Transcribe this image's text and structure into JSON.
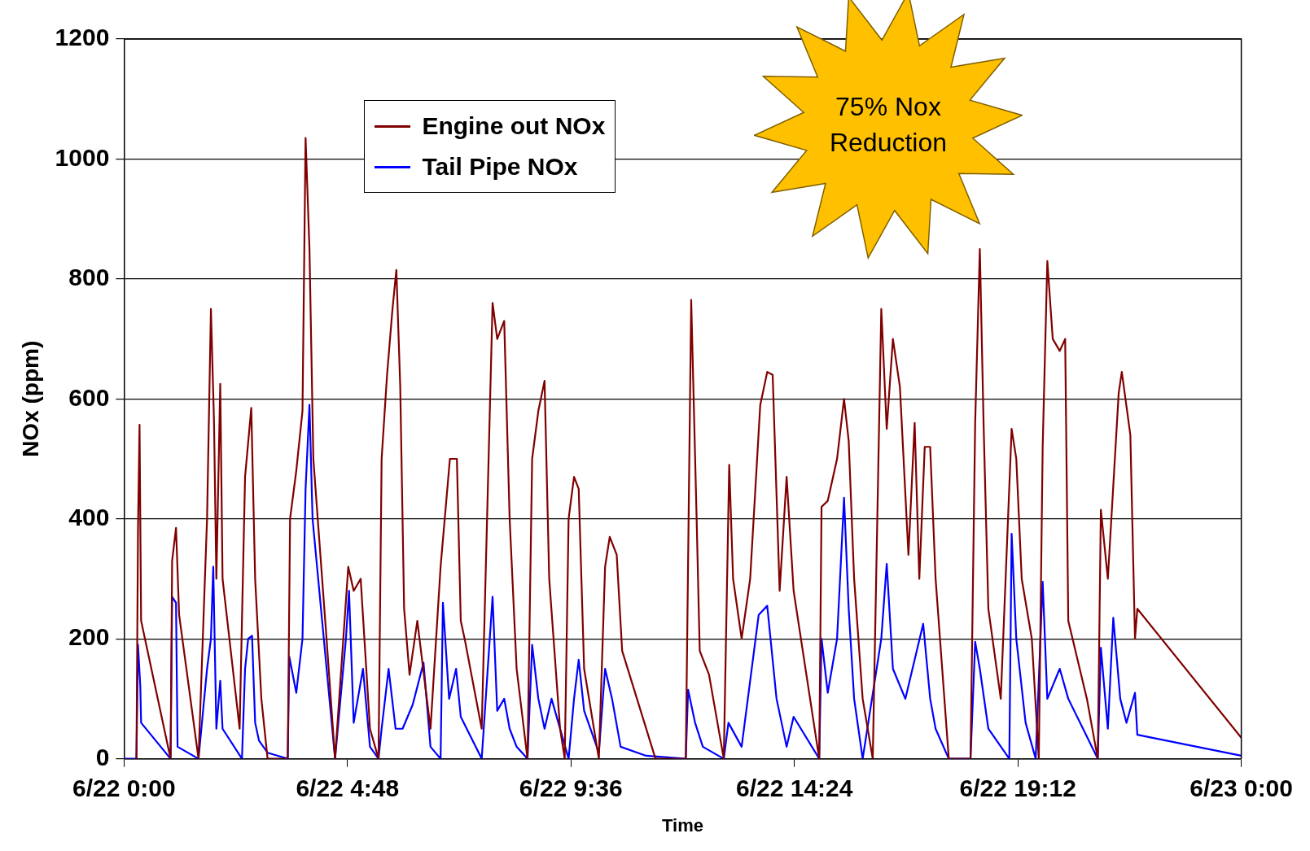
{
  "chart_data": {
    "type": "line",
    "xlabel": "Time",
    "ylabel": "NOx (ppm)",
    "annotations": [
      "75% Nox Reduction"
    ],
    "xlim": [
      "--06-22T00:00",
      "--06-23T00:00"
    ],
    "xticks": [
      {
        "value": "--06-22T00:00",
        "label": "6/22 0:00"
      },
      {
        "value": "--06-22T04:48",
        "label": "6/22 4:48"
      },
      {
        "value": "--06-22T09:36",
        "label": "6/22 9:36"
      },
      {
        "value": "--06-22T14:24",
        "label": "6/22 14:24"
      },
      {
        "value": "--06-22T19:12",
        "label": "6/22 19:12"
      },
      {
        "value": "--06-23T00:00",
        "label": "6/23 0:00"
      }
    ],
    "ylim": [
      0,
      1200
    ],
    "yticks": [
      0,
      200,
      400,
      600,
      800,
      1000,
      1200
    ],
    "grid": "y",
    "legend": "top left",
    "marker": "none",
    "series": [
      {
        "name": "Engine out NOx",
        "color": "#800000",
        "x": [
          "--06-22T00:16",
          "--06-22T00:18",
          "--06-22T00:20",
          "--06-22T00:22",
          "--06-22T00:27",
          "--06-22T01:00",
          "--06-22T01:02",
          "--06-22T01:07",
          "--06-22T01:11",
          "--06-22T01:36",
          "--06-22T01:47",
          "--06-22T01:52",
          "--06-22T01:56",
          "--06-22T01:59",
          "--06-22T02:04",
          "--06-22T02:07",
          "--06-22T02:29",
          "--06-22T02:36",
          "--06-22T02:44",
          "--06-22T02:49",
          "--06-22T02:57",
          "--06-22T03:05",
          "--06-22T03:31",
          "--06-22T03:34",
          "--06-22T03:42",
          "--06-22T03:50",
          "--06-22T03:54",
          "--06-22T03:59",
          "--06-22T04:04",
          "--06-22T04:21",
          "--06-22T04:32",
          "--06-22T04:49",
          "--06-22T04:56",
          "--06-22T05:05",
          "--06-22T05:17",
          "--06-22T05:28",
          "--06-22T05:32",
          "--06-22T05:39",
          "--06-22T05:46",
          "--06-22T05:51",
          "--06-22T05:56",
          "--06-22T06:01",
          "--06-22T06:08",
          "--06-22T06:18",
          "--06-22T06:35",
          "--06-22T06:48",
          "--06-22T07:00",
          "--06-22T07:09",
          "--06-22T07:14",
          "--06-22T07:19",
          "--06-22T07:41",
          "--06-22T07:55",
          "--06-22T08:01",
          "--06-22T08:10",
          "--06-22T08:17",
          "--06-22T08:26",
          "--06-22T08:40",
          "--06-22T08:46",
          "--06-22T08:54",
          "--06-22T09:02",
          "--06-22T09:08",
          "--06-22T09:22",
          "--06-22T09:28",
          "--06-22T09:33",
          "--06-22T09:40",
          "--06-22T09:46",
          "--06-22T09:53",
          "--06-22T10:12",
          "--06-22T10:20",
          "--06-22T10:26",
          "--06-22T10:35",
          "--06-22T10:42",
          "--06-22T11:25",
          "--06-22T12:04",
          "--06-22T12:11",
          "--06-22T12:18",
          "--06-22T12:22",
          "--06-22T12:34",
          "--06-22T12:53",
          "--06-22T13:00",
          "--06-22T13:05",
          "--06-22T13:16",
          "--06-22T13:27",
          "--06-22T13:40",
          "--06-22T13:49",
          "--06-22T13:56",
          "--06-22T14:05",
          "--06-22T14:14",
          "--06-22T14:23",
          "--06-22T14:56",
          "--06-22T14:59",
          "--06-22T15:07",
          "--06-22T15:19",
          "--06-22T15:28",
          "--06-22T15:34",
          "--06-22T15:41",
          "--06-22T15:52",
          "--06-22T16:05",
          "--06-22T16:16",
          "--06-22T16:23",
          "--06-22T16:31",
          "--06-22T16:40",
          "--06-22T16:51",
          "--06-22T16:59",
          "--06-22T17:05",
          "--06-22T17:12",
          "--06-22T17:19",
          "--06-22T17:26",
          "--06-22T17:43",
          "--06-22T18:11",
          "--06-22T18:17",
          "--06-22T18:23",
          "--06-22T18:28",
          "--06-22T18:34",
          "--06-22T18:50",
          "--06-22T19:04",
          "--06-22T19:10",
          "--06-22T19:17",
          "--06-22T19:30",
          "--06-22T19:39",
          "--06-22T19:44",
          "--06-22T19:50",
          "--06-22T19:57",
          "--06-22T20:06",
          "--06-22T20:13",
          "--06-22T20:17",
          "--06-22T20:41",
          "--06-22T20:55",
          "--06-22T20:59",
          "--06-22T21:08",
          "--06-22T21:22",
          "--06-22T21:26",
          "--06-22T21:37",
          "--06-22T21:43",
          "--06-22T21:46",
          "--06-23T00:00"
        ],
        "values": [
          0,
          380,
          557,
          230,
          200,
          0,
          330,
          385,
          240,
          0,
          400,
          750,
          560,
          300,
          625,
          300,
          50,
          470,
          585,
          300,
          100,
          0,
          0,
          400,
          480,
          580,
          1035,
          850,
          500,
          200,
          0,
          320,
          280,
          300,
          50,
          0,
          500,
          640,
          750,
          815,
          620,
          250,
          140,
          230,
          50,
          320,
          500,
          500,
          230,
          200,
          50,
          760,
          700,
          730,
          400,
          150,
          0,
          500,
          580,
          630,
          300,
          50,
          0,
          400,
          470,
          450,
          150,
          0,
          320,
          370,
          340,
          180,
          0,
          0,
          765,
          400,
          180,
          140,
          0,
          490,
          300,
          200,
          300,
          590,
          645,
          640,
          280,
          470,
          280,
          0,
          420,
          430,
          500,
          600,
          530,
          300,
          100,
          0,
          750,
          550,
          700,
          620,
          340,
          560,
          300,
          520,
          520,
          300,
          0,
          0,
          560,
          850,
          550,
          250,
          100,
          550,
          500,
          300,
          200,
          0,
          520,
          830,
          700,
          680,
          700,
          230,
          100,
          0,
          415,
          300,
          610,
          645,
          540,
          200,
          250,
          35
        ]
      },
      {
        "name": "Tail Pipe NOx",
        "color": "#0000ff",
        "x": [
          "--06-22T00:00",
          "--06-22T00:16",
          "--06-22T00:18",
          "--06-22T00:21",
          "--06-22T00:22",
          "--06-22T01:00",
          "--06-22T01:02",
          "--06-22T01:07",
          "--06-22T01:09",
          "--06-22T01:36",
          "--06-22T01:47",
          "--06-22T01:52",
          "--06-22T01:55",
          "--06-22T01:59",
          "--06-22T02:04",
          "--06-22T02:07",
          "--06-22T02:32",
          "--06-22T02:36",
          "--06-22T02:40",
          "--06-22T02:45",
          "--06-22T02:49",
          "--06-22T02:54",
          "--06-22T03:05",
          "--06-22T03:31",
          "--06-22T03:33",
          "--06-22T03:42",
          "--06-22T03:50",
          "--06-22T03:54",
          "--06-22T03:59",
          "--06-22T04:03",
          "--06-22T04:32",
          "--06-22T04:46",
          "--06-22T04:50",
          "--06-22T04:56",
          "--06-22T05:08",
          "--06-22T05:17",
          "--06-22T05:28",
          "--06-22T05:32",
          "--06-22T05:41",
          "--06-22T05:50",
          "--06-22T05:59",
          "--06-22T06:12",
          "--06-22T06:26",
          "--06-22T06:35",
          "--06-22T06:48",
          "--06-22T06:51",
          "--06-22T06:59",
          "--06-22T07:08",
          "--06-22T07:14",
          "--06-22T07:41",
          "--06-22T07:55",
          "--06-22T08:01",
          "--06-22T08:10",
          "--06-22T08:17",
          "--06-22T08:26",
          "--06-22T08:40",
          "--06-22T08:46",
          "--06-22T08:54",
          "--06-22T09:02",
          "--06-22T09:11",
          "--06-22T09:33",
          "--06-22T09:40",
          "--06-22T09:46",
          "--06-22T09:53",
          "--06-22T10:12",
          "--06-22T10:20",
          "--06-22T10:29",
          "--06-22T10:40",
          "--06-22T11:13",
          "--06-22T12:04",
          "--06-22T12:07",
          "--06-22T12:16",
          "--06-22T12:26",
          "--06-22T12:53",
          "--06-22T12:59",
          "--06-22T13:16",
          "--06-22T13:38",
          "--06-22T13:49",
          "--06-22T14:01",
          "--06-22T14:14",
          "--06-22T14:23",
          "--06-22T14:56",
          "--06-22T14:59",
          "--06-22T15:07",
          "--06-22T15:19",
          "--06-22T15:28",
          "--06-22T15:34",
          "--06-22T15:41",
          "--06-22T15:52",
          "--06-22T16:16",
          "--06-22T16:23",
          "--06-22T16:31",
          "--06-22T16:47",
          "--06-22T17:10",
          "--06-22T17:19",
          "--06-22T17:26",
          "--06-22T17:43",
          "--06-22T18:11",
          "--06-22T18:17",
          "--06-22T18:23",
          "--06-22T18:34",
          "--06-22T19:01",
          "--06-22T19:04",
          "--06-22T19:10",
          "--06-22T19:22",
          "--06-22T19:35",
          "--06-22T19:44",
          "--06-22T19:50",
          "--06-22T20:06",
          "--06-22T20:17",
          "--06-22T20:55",
          "--06-22T20:59",
          "--06-22T21:08",
          "--06-22T21:15",
          "--06-22T21:24",
          "--06-22T21:32",
          "--06-22T21:43",
          "--06-22T21:46",
          "--06-23T00:00"
        ],
        "values": [
          0,
          0,
          190,
          120,
          60,
          0,
          270,
          260,
          20,
          0,
          150,
          200,
          320,
          50,
          130,
          50,
          0,
          150,
          200,
          205,
          60,
          30,
          10,
          0,
          170,
          110,
          200,
          450,
          590,
          400,
          0,
          200,
          280,
          60,
          150,
          20,
          0,
          50,
          150,
          50,
          50,
          90,
          160,
          20,
          0,
          260,
          100,
          150,
          70,
          0,
          270,
          80,
          100,
          50,
          20,
          0,
          190,
          100,
          50,
          100,
          0,
          100,
          165,
          80,
          10,
          150,
          100,
          20,
          5,
          0,
          115,
          60,
          20,
          0,
          60,
          20,
          240,
          255,
          100,
          20,
          70,
          0,
          200,
          110,
          200,
          435,
          250,
          100,
          0,
          200,
          325,
          150,
          100,
          225,
          100,
          50,
          0,
          0,
          195,
          150,
          50,
          0,
          375,
          200,
          60,
          0,
          295,
          100,
          150,
          100,
          0,
          185,
          50,
          235,
          100,
          60,
          110,
          40,
          5
        ]
      }
    ]
  }
}
